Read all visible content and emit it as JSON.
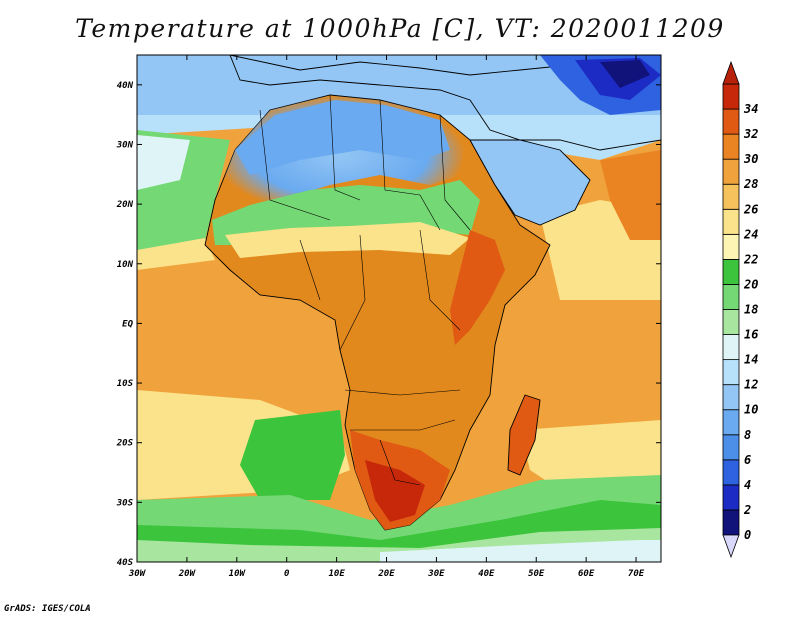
{
  "title": "Temperature at 1000hPa [C], VT: 2020011209",
  "credit": "GrADS: IGES/COLA",
  "map": {
    "lon_labels": [
      "30W",
      "20W",
      "10W",
      "0",
      "10E",
      "20E",
      "30E",
      "40E",
      "50E",
      "60E",
      "70E"
    ],
    "lat_labels": [
      "40N",
      "30N",
      "20N",
      "10N",
      "EQ",
      "10S",
      "20S",
      "30S",
      "40S"
    ],
    "lon_range": [
      -30,
      75
    ],
    "lat_range": [
      -40,
      45
    ],
    "ocean_color": "#f0a33c",
    "land_color": "#e2891e"
  },
  "colorbar": {
    "labels": [
      "0",
      "2",
      "4",
      "6",
      "8",
      "10",
      "12",
      "14",
      "16",
      "18",
      "20",
      "22",
      "24",
      "26",
      "28",
      "30",
      "32",
      "34"
    ],
    "colors": [
      "#11127a",
      "#1c2bc4",
      "#2e62e0",
      "#4c8fe8",
      "#6aaaf0",
      "#93c6f4",
      "#b7e0fa",
      "#def4f7",
      "#a8e6a0",
      "#74d874",
      "#3cc43c",
      "#fcf5b4",
      "#fbe38c",
      "#f6c25c",
      "#f0a33c",
      "#ea8422",
      "#e05a14",
      "#c8280a"
    ],
    "under_color": "#dad8fa",
    "over_color": "#b8220a"
  }
}
